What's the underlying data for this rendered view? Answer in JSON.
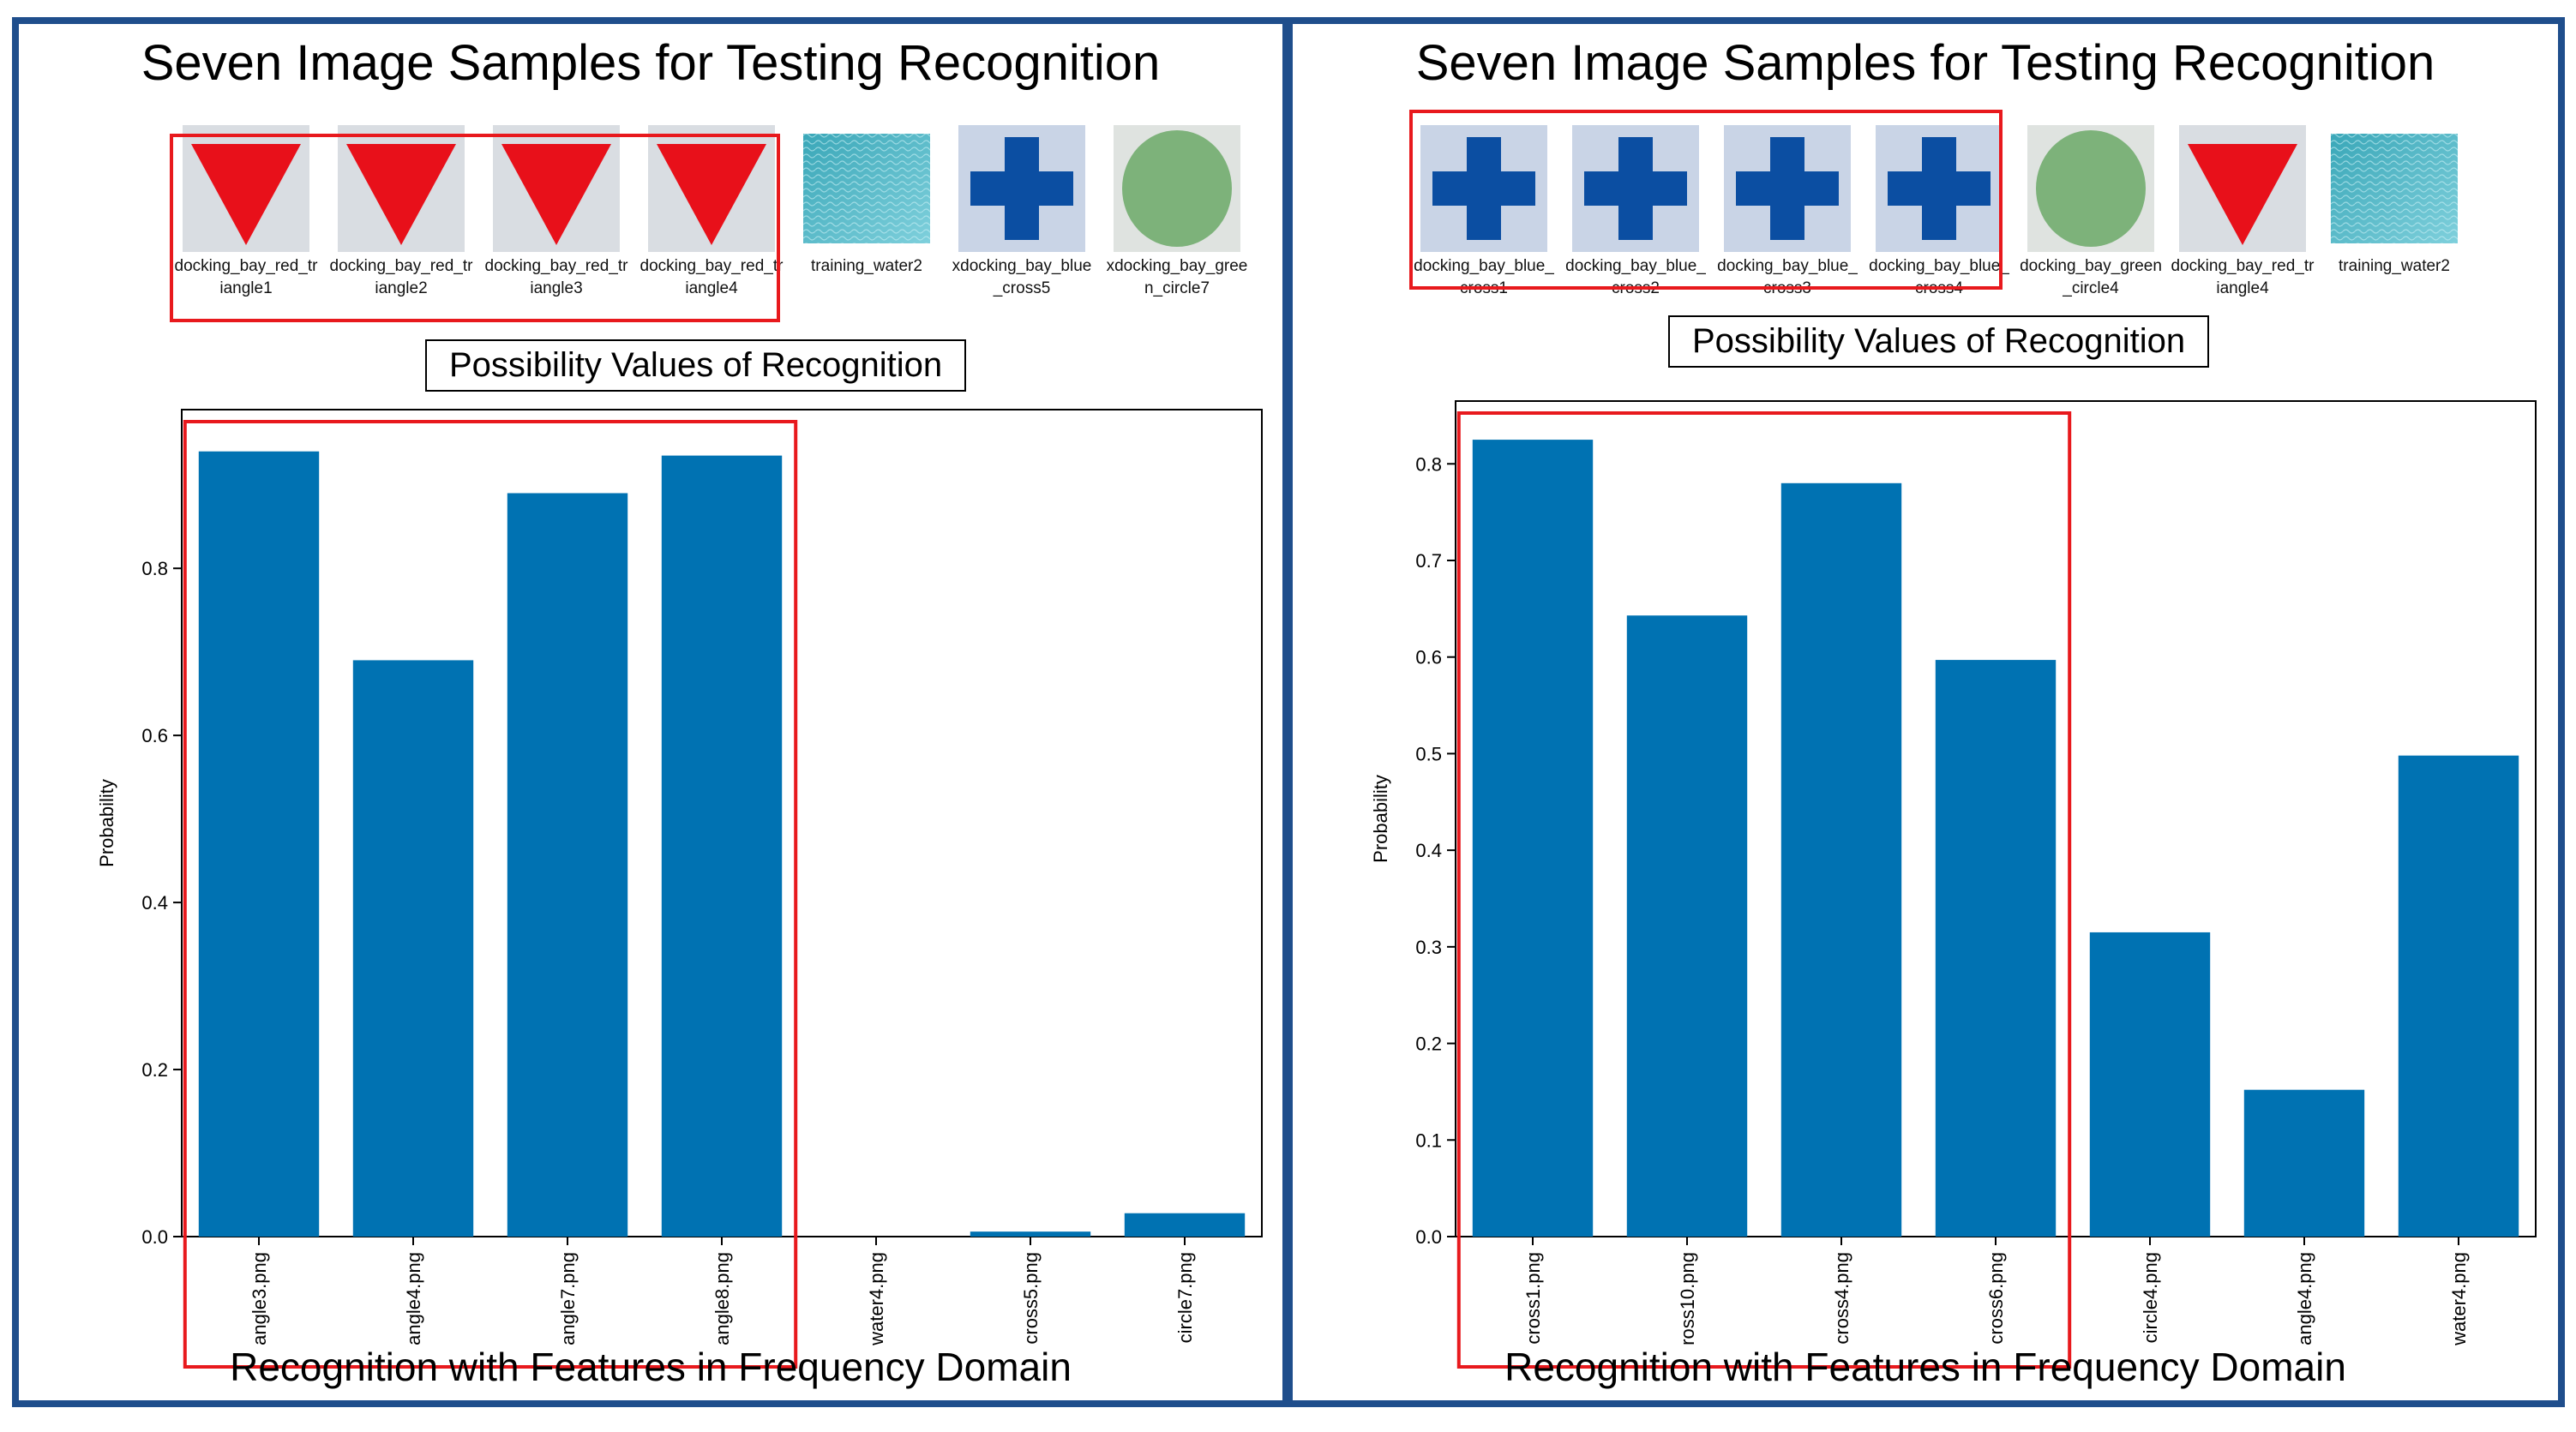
{
  "colors": {
    "bar": "#0072b2",
    "frame": "#1f4e8c",
    "highlight": "#e8191d"
  },
  "left": {
    "title": "Seven Image Samples for Testing Recognition",
    "samples": [
      {
        "caption": "docking_bay_red_triangle1",
        "icon": "red-triangle-icon"
      },
      {
        "caption": "docking_bay_red_triangle2",
        "icon": "red-triangle-icon"
      },
      {
        "caption": "docking_bay_red_triangle3",
        "icon": "red-triangle-icon"
      },
      {
        "caption": "docking_bay_red_triangle4",
        "icon": "red-triangle-icon"
      },
      {
        "caption": "training_water2",
        "icon": "water-texture-icon"
      },
      {
        "caption": "xdocking_bay_blue_cross5",
        "icon": "blue-cross-icon"
      },
      {
        "caption": "xdocking_bay_green_circle7",
        "icon": "green-circle-icon"
      }
    ],
    "chart_title": "Possibility Values of Recognition",
    "footer": "Recognition with Features in Frequency Domain"
  },
  "right": {
    "title": "Seven Image Samples for Testing Recognition",
    "samples": [
      {
        "caption": "docking_bay_blue_cross1",
        "icon": "blue-cross-icon"
      },
      {
        "caption": "docking_bay_blue_cross2",
        "icon": "blue-cross-icon"
      },
      {
        "caption": "docking_bay_blue_cross3",
        "icon": "blue-cross-icon"
      },
      {
        "caption": "docking_bay_blue_cross4",
        "icon": "blue-cross-icon"
      },
      {
        "caption": "docking_bay_green_circle4",
        "icon": "green-circle-icon"
      },
      {
        "caption": "docking_bay_red_triangle4",
        "icon": "red-triangle-icon"
      },
      {
        "caption": "training_water2",
        "icon": "water-texture-icon"
      }
    ],
    "chart_title": "Possibility Values of Recognition",
    "footer": "Recognition with Features in Frequency Domain"
  },
  "chart_data": [
    {
      "type": "bar",
      "title": "Possibility Values of Recognition",
      "xlabel": "",
      "ylabel": "Probability",
      "categories": [
        "angle3.png",
        "angle4.png",
        "angle7.png",
        "angle8.png",
        "water4.png",
        "cross5.png",
        "circle7.png"
      ],
      "values": [
        0.94,
        0.69,
        0.89,
        0.935,
        0.0,
        0.006,
        0.028
      ],
      "ylim": [
        0,
        0.99
      ],
      "yticks": [
        0.0,
        0.2,
        0.4,
        0.6,
        0.8
      ],
      "ytick_labels": [
        "0.0",
        "0.2",
        "0.4",
        "0.6",
        "0.8"
      ],
      "grid": false,
      "highlighted": [
        0,
        1,
        2,
        3
      ]
    },
    {
      "type": "bar",
      "title": "Possibility Values of Recognition",
      "xlabel": "",
      "ylabel": "Probability",
      "categories": [
        "cross1.png",
        "ross10.png",
        "cross4.png",
        "cross6.png",
        "circle4.png",
        "angle4.png",
        "water4.png"
      ],
      "values": [
        0.825,
        0.643,
        0.78,
        0.597,
        0.315,
        0.152,
        0.498
      ],
      "ylim": [
        0,
        0.865
      ],
      "yticks": [
        0.0,
        0.1,
        0.2,
        0.3,
        0.4,
        0.5,
        0.6,
        0.7,
        0.8
      ],
      "ytick_labels": [
        "0.0",
        "0.1",
        "0.2",
        "0.3",
        "0.4",
        "0.5",
        "0.6",
        "0.7",
        "0.8"
      ],
      "grid": false,
      "highlighted": [
        0,
        1,
        2,
        3
      ]
    }
  ]
}
